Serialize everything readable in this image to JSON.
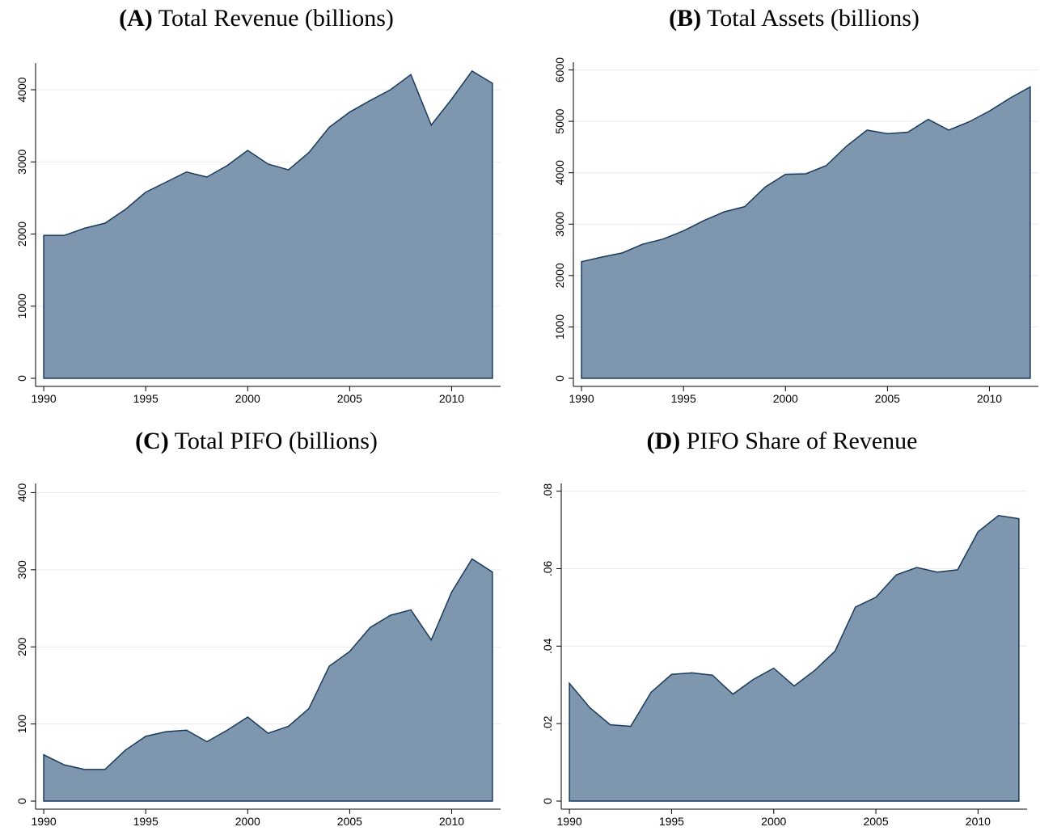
{
  "chart_data": [
    {
      "type": "area",
      "label": "(A)",
      "title": "Total Revenue (billions)",
      "color": "#7f97ae",
      "line_color": "#1a3a5c",
      "grid": true,
      "x": [
        1990,
        1991,
        1992,
        1993,
        1994,
        1995,
        1996,
        1997,
        1998,
        1999,
        2000,
        2001,
        2002,
        2003,
        2004,
        2005,
        2006,
        2007,
        2008,
        2009,
        2010,
        2011,
        2012
      ],
      "values": [
        1980,
        1980,
        2080,
        2150,
        2340,
        2580,
        2720,
        2860,
        2790,
        2950,
        3160,
        2970,
        2890,
        3130,
        3480,
        3690,
        3850,
        4000,
        4210,
        3510,
        3870,
        4260,
        4090
      ],
      "xlim": [
        1989.6,
        2012.4
      ],
      "xticks": [
        1990,
        1995,
        2000,
        2005,
        2010
      ],
      "ylim": [
        0,
        4370
      ],
      "yticks": [
        0,
        1000,
        2000,
        3000,
        4000
      ]
    },
    {
      "type": "area",
      "label": "(B)",
      "title": "Total Assets (billions)",
      "color": "#7f97ae",
      "line_color": "#1a3a5c",
      "grid": true,
      "x": [
        1990,
        1991,
        1992,
        1993,
        1994,
        1995,
        1996,
        1997,
        1998,
        1999,
        2000,
        2001,
        2002,
        2003,
        2004,
        2005,
        2006,
        2007,
        2008,
        2009,
        2010,
        2011,
        2012
      ],
      "values": [
        2270,
        2360,
        2440,
        2610,
        2710,
        2870,
        3070,
        3240,
        3340,
        3720,
        3970,
        3980,
        4140,
        4520,
        4830,
        4760,
        4790,
        5040,
        4830,
        4990,
        5200,
        5450,
        5670
      ],
      "xlim": [
        1989.6,
        2012.4
      ],
      "xticks": [
        1990,
        1995,
        2000,
        2005,
        2010
      ],
      "ylim": [
        0,
        6150
      ],
      "yticks": [
        0,
        1000,
        2000,
        3000,
        4000,
        5000,
        6000
      ]
    },
    {
      "type": "area",
      "label": "(C)",
      "title": "Total PIFO (billions)",
      "color": "#7f97ae",
      "line_color": "#1a3a5c",
      "grid": true,
      "x": [
        1990,
        1991,
        1992,
        1993,
        1994,
        1995,
        1996,
        1997,
        1998,
        1999,
        2000,
        2001,
        2002,
        2003,
        2004,
        2005,
        2006,
        2007,
        2008,
        2009,
        2010,
        2011,
        2012
      ],
      "values": [
        60,
        47,
        41,
        41,
        66,
        84,
        90,
        92,
        77,
        92,
        109,
        88,
        97,
        120,
        175,
        194,
        225,
        241,
        248,
        209,
        271,
        314,
        297
      ],
      "xlim": [
        1989.6,
        2012.4
      ],
      "xticks": [
        1990,
        1995,
        2000,
        2005,
        2010
      ],
      "ylim": [
        0,
        412
      ],
      "yticks": [
        0,
        100,
        200,
        300,
        400
      ]
    },
    {
      "type": "area",
      "label": "(D)",
      "title": "PIFO Share of Revenue",
      "color": "#7f97ae",
      "line_color": "#1a3a5c",
      "grid": true,
      "x": [
        1990,
        1991,
        1992,
        1993,
        1994,
        1995,
        1996,
        1997,
        1998,
        1999,
        2000,
        2001,
        2002,
        2003,
        2004,
        2005,
        2006,
        2007,
        2008,
        2009,
        2010,
        2011,
        2012
      ],
      "values": [
        0.0304,
        0.0241,
        0.0197,
        0.0193,
        0.0281,
        0.0327,
        0.0331,
        0.0325,
        0.0276,
        0.0314,
        0.0343,
        0.0297,
        0.0337,
        0.0387,
        0.0501,
        0.0526,
        0.0584,
        0.0603,
        0.0591,
        0.0597,
        0.0695,
        0.0737,
        0.0729
      ],
      "xlim": [
        1989.6,
        2012.4
      ],
      "xticks": [
        1990,
        1995,
        2000,
        2005,
        2010
      ],
      "ylim": [
        0,
        0.082
      ],
      "yticks": [
        0,
        {
          "value": 0.02,
          "label": ".02"
        },
        {
          "value": 0.04,
          "label": ".04"
        },
        {
          "value": 0.06,
          "label": ".06"
        },
        {
          "value": 0.08,
          "label": ".08"
        }
      ]
    }
  ]
}
